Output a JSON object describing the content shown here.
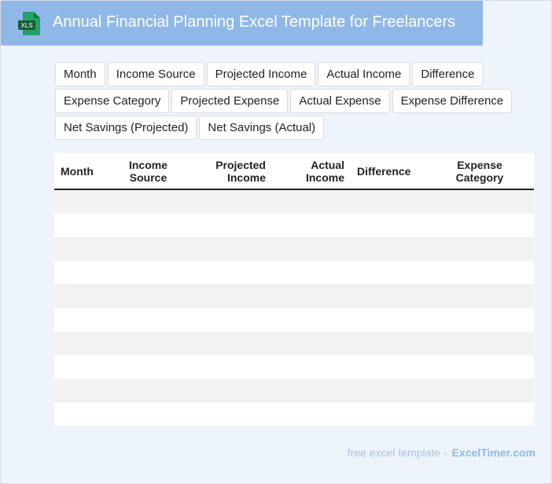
{
  "header": {
    "icon": "XLS",
    "title": "Annual Financial Planning Excel Template for Freelancers"
  },
  "tags": [
    [
      "Month",
      "Income Source",
      "Projected Income",
      "Actual Income",
      "Difference"
    ],
    [
      "Expense Category",
      "Projected Expense",
      "Actual Expense",
      "Expense Difference"
    ],
    [
      "Net Savings (Projected)",
      "Net Savings (Actual)"
    ]
  ],
  "table": {
    "columns": [
      "Month",
      "Income Source",
      "Projected Income",
      "Actual Income",
      "Difference",
      "Expense Category"
    ]
  },
  "footer": {
    "text": "free excel template -",
    "site": "ExcelTimer.com"
  }
}
